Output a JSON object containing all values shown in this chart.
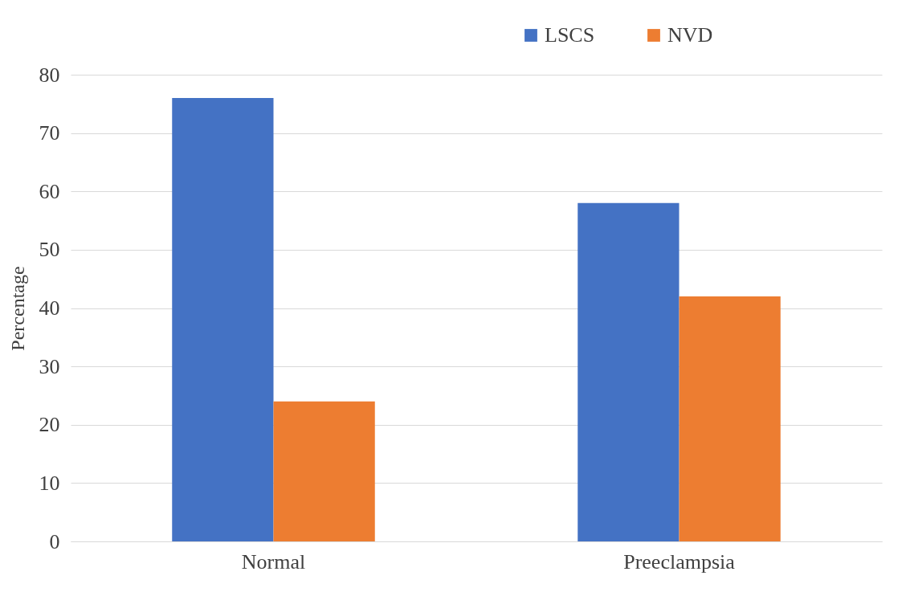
{
  "chart_data": {
    "type": "bar",
    "ylabel": "Percentage",
    "categories": [
      "Normal",
      "Preeclampsia"
    ],
    "series": [
      {
        "name": "LSCS",
        "color": "#4472c4",
        "values": [
          76,
          58
        ]
      },
      {
        "name": "NVD",
        "color": "#ed7d31",
        "values": [
          24,
          42
        ]
      }
    ],
    "ylim": [
      0,
      80
    ],
    "yticks": [
      0,
      10,
      20,
      30,
      40,
      50,
      60,
      70,
      80
    ],
    "grid": "y",
    "legend": "top right"
  }
}
